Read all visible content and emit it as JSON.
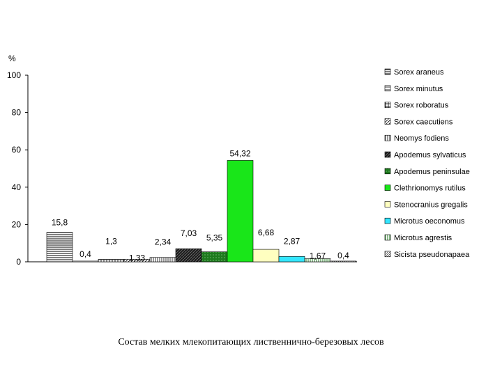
{
  "chart_data": {
    "type": "bar",
    "ylabel": "%",
    "ylim": [
      0,
      100
    ],
    "yticks": [
      0,
      20,
      40,
      60,
      80,
      100
    ],
    "grid": false,
    "legend_position": "right",
    "series": [
      {
        "name": "Sorex araneus",
        "value": 15.8,
        "label": "15,8",
        "color": "#ffffff",
        "pattern": "hlines"
      },
      {
        "name": "Sorex minutus",
        "value": 0.4,
        "label": "0,4",
        "color": "#ffffff",
        "pattern": "hlines-sparse"
      },
      {
        "name": "Sorex roboratus",
        "value": 1.3,
        "label": "1,3",
        "color": "#ffffff",
        "pattern": "grid"
      },
      {
        "name": "Sorex caecutiens",
        "value": 1.33,
        "label": "1,33",
        "color": "#ffffff",
        "pattern": "diag"
      },
      {
        "name": "Neomys fodiens",
        "value": 2.34,
        "label": "2,34",
        "color": "#ffffff",
        "pattern": "vlines"
      },
      {
        "name": "Apodemus sylvaticus",
        "value": 7.03,
        "label": "7,03",
        "color": "#1a1a1a",
        "pattern": "dark-diag"
      },
      {
        "name": "Apodemus peninsulae",
        "value": 5.35,
        "label": "5,35",
        "color": "#1e7a1e",
        "pattern": "dots"
      },
      {
        "name": "Clethrionomys rutilus",
        "value": 54.32,
        "label": "54,32",
        "color": "#19e619",
        "pattern": "solid"
      },
      {
        "name": "Stenocranius gregalis",
        "value": 6.68,
        "label": "6,68",
        "color": "#ffffc0",
        "pattern": "solid"
      },
      {
        "name": "Microtus oeconomus",
        "value": 2.87,
        "label": "2,87",
        "color": "#33e6ff",
        "pattern": "solid"
      },
      {
        "name": "Microtus agrestis",
        "value": 1.67,
        "label": "1,67",
        "color": "#ffffff",
        "pattern": "vlines-green"
      },
      {
        "name": "Sicista pseudonapaea",
        "value": 0.4,
        "label": "0,4",
        "color": "#ffffff",
        "pattern": "diag-fine"
      }
    ]
  },
  "caption": "Состав мелких млекопитающих лиственнично-березовых лесов"
}
